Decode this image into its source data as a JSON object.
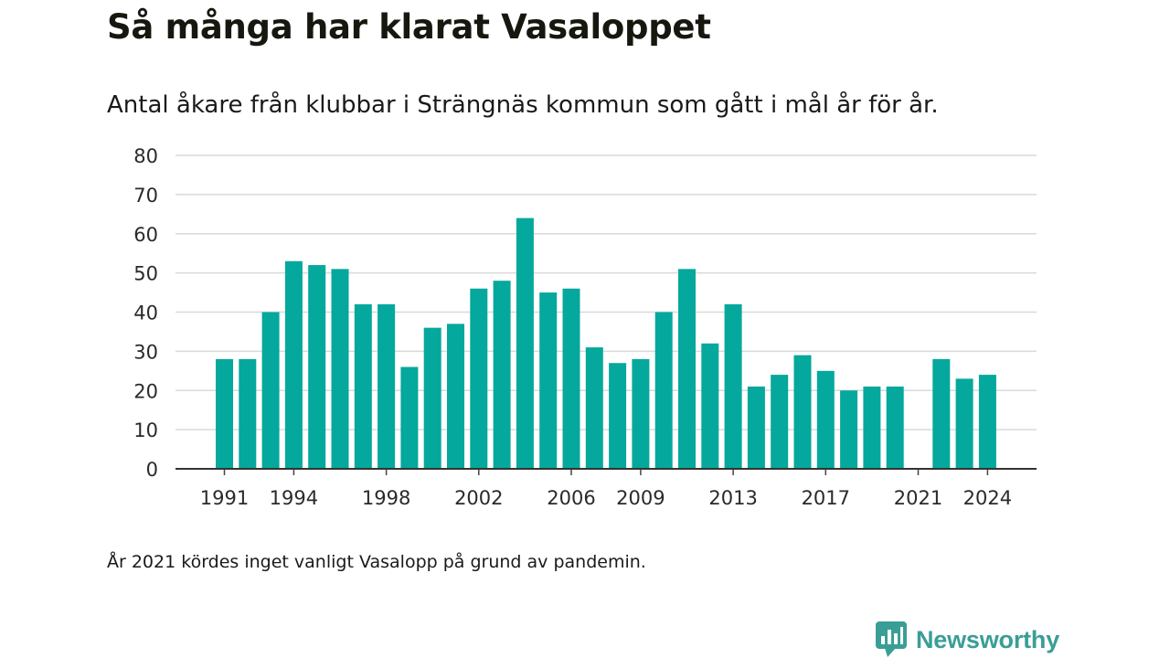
{
  "title": "Så många har klarat Vasaloppet",
  "subtitle": "Antal åkare från klubbar i Strängnäs kommun som gått i mål år för år.",
  "footnote": "År 2021 kördes inget vanligt Vasalopp på grund av pandemin.",
  "brand": {
    "name": "Newsworthy",
    "icon": "newsworthy-logo-icon",
    "color": "#3a9e96"
  },
  "chart_data": {
    "type": "bar",
    "title": "Så många har klarat Vasaloppet",
    "subtitle": "Antal åkare från klubbar i Strängnäs kommun som gått i mål år för år.",
    "xlabel": "",
    "ylabel": "",
    "ylim": [
      0,
      80
    ],
    "yticks": [
      0,
      10,
      20,
      30,
      40,
      50,
      60,
      70,
      80
    ],
    "xticks": [
      1991,
      1994,
      1998,
      2002,
      2006,
      2009,
      2013,
      2017,
      2021,
      2024
    ],
    "grid": true,
    "bar_color": "#05a89c",
    "categories": [
      1991,
      1992,
      1993,
      1994,
      1995,
      1996,
      1997,
      1998,
      1999,
      2000,
      2001,
      2002,
      2003,
      2004,
      2005,
      2006,
      2007,
      2008,
      2009,
      2010,
      2011,
      2012,
      2013,
      2014,
      2015,
      2016,
      2017,
      2018,
      2019,
      2020,
      2021,
      2022,
      2023,
      2024
    ],
    "values": [
      28,
      28,
      40,
      53,
      52,
      51,
      42,
      42,
      26,
      36,
      37,
      46,
      48,
      64,
      45,
      46,
      31,
      27,
      28,
      40,
      51,
      32,
      42,
      21,
      24,
      29,
      25,
      20,
      21,
      21,
      0,
      28,
      23,
      24
    ]
  }
}
